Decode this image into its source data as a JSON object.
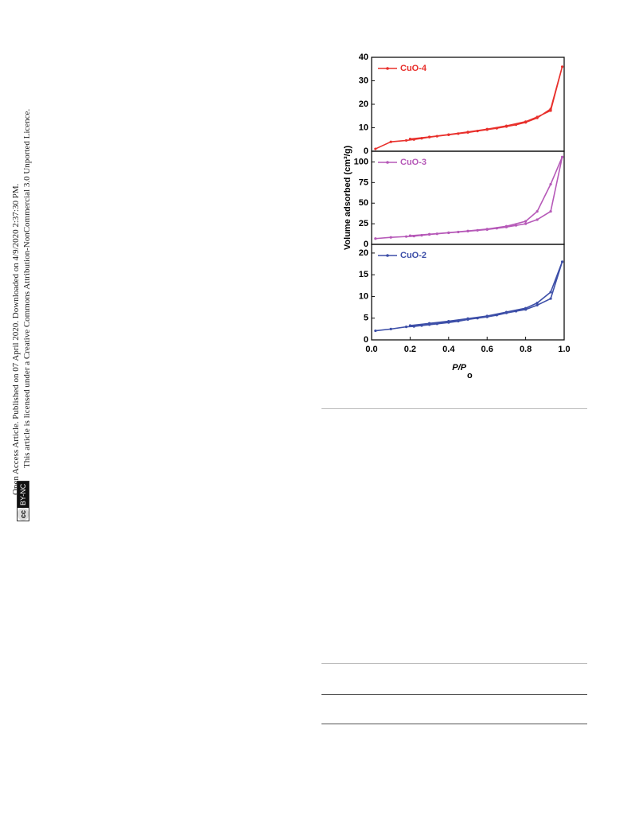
{
  "sidebar": {
    "access": "Open Access Article. Published on 07 April 2020. Downloaded on 4/9/2020 2:37:30 PM.",
    "licence": "This article is licensed under a Creative Commons Attribution-NonCommercial 3.0 Unported Licence.",
    "badge": [
      "cc",
      "BY-NC"
    ]
  },
  "chart_data": [
    {
      "type": "line",
      "xlim": [
        0,
        1.0
      ],
      "ylim": [
        0,
        40
      ],
      "yticks": [
        0,
        10,
        20,
        30,
        40
      ],
      "series": [
        {
          "name": "CuO-4",
          "color": "#e8302c",
          "x": [
            0.02,
            0.1,
            0.18,
            0.22,
            0.26,
            0.3,
            0.34,
            0.4,
            0.45,
            0.5,
            0.55,
            0.6,
            0.65,
            0.7,
            0.75,
            0.8,
            0.86,
            0.93,
            0.99,
            0.93,
            0.86,
            0.8,
            0.7,
            0.6,
            0.5,
            0.4,
            0.3,
            0.2
          ],
          "values": [
            1,
            4,
            4.6,
            5,
            5.5,
            6,
            6.4,
            7,
            7.5,
            8,
            8.6,
            9.2,
            9.8,
            10.5,
            11.3,
            12.3,
            14.2,
            18,
            36,
            17.3,
            14.6,
            12.6,
            10.8,
            9.4,
            8.2,
            7.1,
            6.1,
            5.2
          ]
        }
      ]
    },
    {
      "type": "line",
      "xlim": [
        0,
        1.0
      ],
      "ylim": [
        0,
        113
      ],
      "yticks": [
        0,
        25,
        50,
        75,
        100
      ],
      "ylabel": "Volume adsorbed (cm³/g)",
      "series": [
        {
          "name": "CuO-3",
          "color": "#b659b8",
          "x": [
            0.02,
            0.1,
            0.18,
            0.22,
            0.26,
            0.3,
            0.34,
            0.4,
            0.45,
            0.5,
            0.55,
            0.6,
            0.65,
            0.7,
            0.75,
            0.8,
            0.86,
            0.93,
            0.99,
            0.93,
            0.86,
            0.8,
            0.7,
            0.6,
            0.5,
            0.4,
            0.3,
            0.2
          ],
          "values": [
            7,
            8.5,
            9.5,
            10,
            11,
            12,
            12.8,
            14,
            15,
            16,
            17,
            18,
            19.5,
            21,
            23,
            25,
            30,
            40,
            106,
            73,
            40,
            28,
            22,
            18.5,
            16.2,
            14.2,
            12.3,
            10.5
          ]
        }
      ]
    },
    {
      "type": "line",
      "xlim": [
        0,
        1.0
      ],
      "ylim": [
        0,
        22
      ],
      "yticks": [
        0,
        5,
        10,
        15,
        20
      ],
      "xticks": [
        {
          "value": 0,
          "label": "0.0"
        },
        0.2,
        0.4,
        0.6,
        0.8,
        {
          "value": 1,
          "label": "1.0"
        }
      ],
      "xlabel": {
        "main": "P/P",
        "sub": "o"
      },
      "series": [
        {
          "name": "CuO-2",
          "color": "#3d4fa8",
          "x": [
            0.02,
            0.1,
            0.18,
            0.22,
            0.26,
            0.3,
            0.34,
            0.4,
            0.45,
            0.5,
            0.55,
            0.6,
            0.65,
            0.7,
            0.75,
            0.8,
            0.86,
            0.93,
            0.99,
            0.93,
            0.86,
            0.8,
            0.7,
            0.6,
            0.5,
            0.4,
            0.3,
            0.2
          ],
          "values": [
            2.1,
            2.5,
            3,
            3.1,
            3.3,
            3.5,
            3.7,
            4,
            4.3,
            4.7,
            5,
            5.3,
            5.7,
            6.2,
            6.6,
            7,
            8,
            9.5,
            18,
            11,
            8.5,
            7.3,
            6.4,
            5.5,
            4.9,
            4.3,
            3.8,
            3.3
          ]
        }
      ]
    }
  ]
}
